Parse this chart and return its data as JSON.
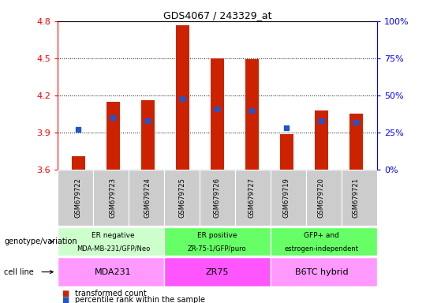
{
  "title": "GDS4067 / 243329_at",
  "samples": [
    "GSM679722",
    "GSM679723",
    "GSM679724",
    "GSM679725",
    "GSM679726",
    "GSM679727",
    "GSM679719",
    "GSM679720",
    "GSM679721"
  ],
  "transformed_count": [
    3.71,
    4.15,
    4.16,
    4.77,
    4.5,
    4.49,
    3.89,
    4.08,
    4.05
  ],
  "percentile_rank_pct": [
    27,
    35,
    33,
    48,
    41,
    40,
    28,
    33,
    32
  ],
  "ylim_left": [
    3.6,
    4.8
  ],
  "ylim_right": [
    0,
    100
  ],
  "yticks_left": [
    3.6,
    3.9,
    4.2,
    4.5,
    4.8
  ],
  "yticks_right": [
    0,
    25,
    50,
    75,
    100
  ],
  "bar_color": "#cc2200",
  "dot_color": "#2255cc",
  "bar_bottom": 3.6,
  "groups": [
    {
      "label_top": "ER negative",
      "label_bot": "MDA-MB-231/GFP/Neo",
      "cell_line": "MDA231",
      "start": 0,
      "end": 3,
      "color_geno": "#ccffcc",
      "color_cell": "#ff99ff"
    },
    {
      "label_top": "ER positive",
      "label_bot": "ZR-75-1/GFP/puro",
      "cell_line": "ZR75",
      "start": 3,
      "end": 6,
      "color_geno": "#66ff66",
      "color_cell": "#ff55ff"
    },
    {
      "label_top": "GFP+ and",
      "label_bot": "estrogen-independent",
      "cell_line": "B6TC hybrid",
      "start": 6,
      "end": 9,
      "color_geno": "#66ff66",
      "color_cell": "#ff99ff"
    }
  ],
  "legend_items": [
    {
      "color": "#cc2200",
      "label": "transformed count"
    },
    {
      "color": "#2255cc",
      "label": "percentile rank within the sample"
    }
  ],
  "left_label_geno": "genotype/variation",
  "left_label_cell": "cell line",
  "bar_width": 0.4,
  "xlim": [
    -0.6,
    8.6
  ]
}
